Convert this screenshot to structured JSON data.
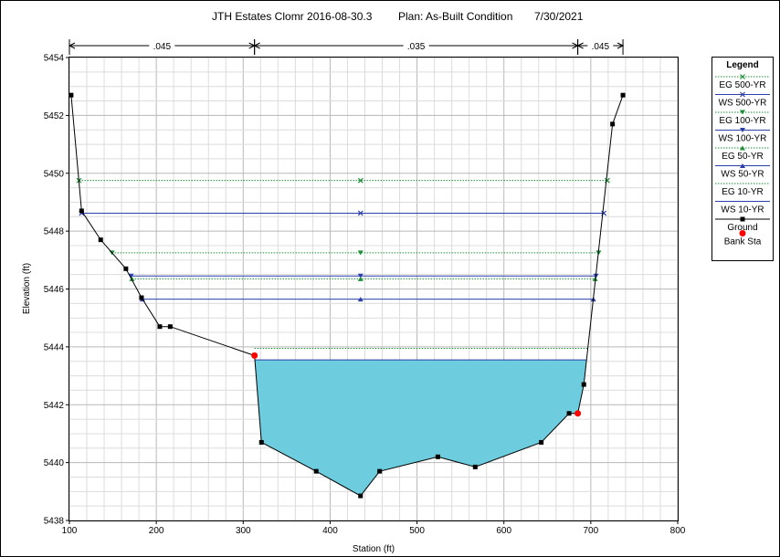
{
  "chart_data": {
    "type": "line",
    "title": {
      "project": "JTH Estates Clomr 2016-08-30.3",
      "plan": "Plan: As-Built Condition",
      "date": "7/30/2021"
    },
    "xlabel": "Station (ft)",
    "ylabel": "Elevation (ft)",
    "xlim": [
      100,
      800
    ],
    "ylim": [
      5438,
      5454
    ],
    "x_ticks": [
      100,
      200,
      300,
      400,
      500,
      600,
      700,
      800
    ],
    "y_ticks": [
      5438,
      5440,
      5442,
      5444,
      5446,
      5448,
      5450,
      5452,
      5454
    ],
    "grid": true,
    "legend_position": "right",
    "legend_title": "Legend",
    "mannings_n": [
      {
        "label": ".045",
        "x_start": 100,
        "x_end": 313
      },
      {
        "label": ".035",
        "x_start": 313,
        "x_end": 685
      },
      {
        "label": ".045",
        "x_start": 685,
        "x_end": 737
      }
    ],
    "ground": {
      "name": "Ground",
      "color": "#000000",
      "points": [
        [
          102,
          5452.7
        ],
        [
          114,
          5448.7
        ],
        [
          136,
          5447.7
        ],
        [
          165,
          5446.7
        ],
        [
          183,
          5445.7
        ],
        [
          204,
          5444.7
        ],
        [
          216,
          5444.7
        ],
        [
          313,
          5443.7
        ],
        [
          321,
          5440.7
        ],
        [
          384,
          5439.7
        ],
        [
          435,
          5438.85
        ],
        [
          457,
          5439.7
        ],
        [
          524,
          5440.2
        ],
        [
          567,
          5439.85
        ],
        [
          643,
          5440.7
        ],
        [
          675,
          5441.7
        ],
        [
          685,
          5441.7
        ],
        [
          692,
          5442.7
        ],
        [
          725,
          5451.7
        ],
        [
          737,
          5452.7
        ]
      ]
    },
    "bank_stations": {
      "name": "Bank Sta",
      "color": "#ff0000",
      "points": [
        [
          313,
          5443.7
        ],
        [
          685,
          5441.7
        ]
      ]
    },
    "water_fill_color": "#6dccdd",
    "series": [
      {
        "name": "EG 500-YR",
        "elevation": 5449.75,
        "x_start": 111,
        "x_end": 719,
        "marker": "x",
        "style": "dotted",
        "color": "#1e8f3a"
      },
      {
        "name": "WS 500-YR",
        "elevation": 5448.62,
        "x_start": 114,
        "x_end": 715,
        "marker": "x",
        "style": "solid",
        "color": "#2a3faa"
      },
      {
        "name": "EG 100-YR",
        "elevation": 5447.25,
        "x_start": 149,
        "x_end": 709,
        "marker": "tri-down",
        "style": "dotted",
        "color": "#1e8f3a"
      },
      {
        "name": "WS 100-YR",
        "elevation": 5446.45,
        "x_start": 171,
        "x_end": 706,
        "marker": "tri-down",
        "style": "solid",
        "color": "#2a3faa"
      },
      {
        "name": "EG 50-YR",
        "elevation": 5446.35,
        "x_start": 172,
        "x_end": 705,
        "marker": "tri-up",
        "style": "dotted",
        "color": "#1e8f3a"
      },
      {
        "name": "WS 50-YR",
        "elevation": 5445.65,
        "x_start": 184,
        "x_end": 703,
        "marker": "tri-up",
        "style": "solid",
        "color": "#2a3faa"
      },
      {
        "name": "EG 10-YR",
        "elevation": 5443.95,
        "x_start": 313,
        "x_end": 696,
        "marker": "none",
        "style": "dotted",
        "color": "#1e8f3a"
      },
      {
        "name": "WS 10-YR",
        "elevation": 5443.55,
        "x_start": 313,
        "x_end": 695,
        "marker": "none",
        "style": "solid",
        "color": "#2a3faa"
      }
    ]
  }
}
